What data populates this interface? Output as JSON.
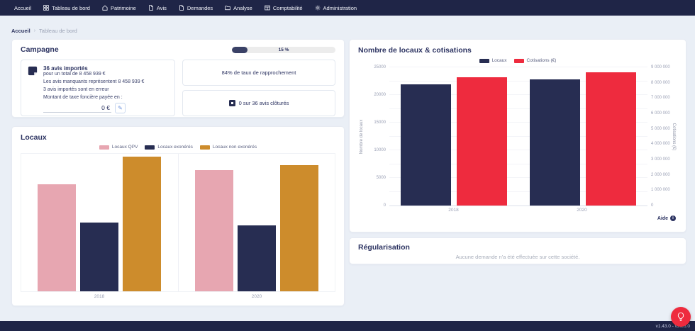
{
  "nav": {
    "items": [
      {
        "label": "Accueil",
        "icon": null
      },
      {
        "label": "Tableau de bord",
        "icon": "grid"
      },
      {
        "label": "Patrimoine",
        "icon": "home"
      },
      {
        "label": "Avis",
        "icon": "document"
      },
      {
        "label": "Demandes",
        "icon": "document"
      },
      {
        "label": "Analyse",
        "icon": "folder"
      },
      {
        "label": "Comptabilité",
        "icon": "table"
      },
      {
        "label": "Administration",
        "icon": "gear"
      }
    ]
  },
  "breadcrumb": {
    "home": "Accueil",
    "separator": "›",
    "current": "Tableau de bord"
  },
  "campagne": {
    "title": "Campagne",
    "progress": {
      "percent": 15,
      "label": "15 %"
    },
    "import_card": {
      "title": "36 avis importés",
      "subtitle": "pour un total de 8 458 939 €",
      "line_missing": "Les avis manquants représentent 8 458 939 €",
      "line_errors": "3 avis importés sont en erreur",
      "line_amount": "Montant de taxe foncière payée en :",
      "amount_value": "0 €"
    },
    "rapprochement_card": {
      "text": "84% de taux de rapprochement"
    },
    "clotures_card": {
      "text": "0 sur 36 avis clôturés"
    }
  },
  "regularisation": {
    "title": "Régularisation",
    "empty_text": "Aucune demande n'a été effectuée sur cette société."
  },
  "aide": {
    "label": "Aide",
    "info_glyph": "i"
  },
  "footer": {
    "version": "v1.43.0 - v2.26.0"
  },
  "colors": {
    "navbar": "#1f2547",
    "page_bg": "#eaeff6",
    "title_navy": "#2d3462",
    "pink": "#e7a6b1",
    "navy_bar": "#272d52",
    "gold": "#cd8c2c",
    "red": "#ee2b3e",
    "progress_fill": "#3a4166",
    "fab_red": "#ee2b3e"
  },
  "chart_data": [
    {
      "id": "locaux",
      "type": "bar",
      "title": "Locaux",
      "categories": [
        "2018",
        "2020"
      ],
      "series": [
        {
          "name": "Locaux QPV",
          "color": "#e7a6b1",
          "values": [
            78,
            88
          ]
        },
        {
          "name": "Locaux exonérés",
          "color": "#272d52",
          "values": [
            50,
            48
          ]
        },
        {
          "name": "Locaux non exonérés",
          "color": "#cd8c2c",
          "values": [
            98,
            92
          ]
        }
      ],
      "ylim": [
        0,
        100
      ],
      "grid": false,
      "legend_position": "top"
    },
    {
      "id": "locaux-cotisations",
      "type": "bar",
      "title": "Nombre de locaux & cotisations",
      "categories": [
        "2018",
        "2020"
      ],
      "series": [
        {
          "name": "Locaux",
          "axis": "left",
          "color": "#272d52",
          "values": [
            21900,
            22800
          ]
        },
        {
          "name": "Cotisations (€)",
          "axis": "right",
          "color": "#ee2b3e",
          "values": [
            8350000,
            8700000
          ]
        }
      ],
      "left_axis": {
        "label": "Nombre de locaux",
        "max": 25000,
        "ticks": [
          0,
          5000,
          10000,
          15000,
          20000,
          25000
        ],
        "minor_step": 2500
      },
      "right_axis": {
        "label": "Cotisations (€)",
        "max": 9000000,
        "ticks": [
          0,
          1000000,
          2000000,
          3000000,
          4000000,
          5000000,
          6000000,
          7000000,
          8000000,
          9000000
        ]
      },
      "grid": true,
      "legend_position": "top"
    }
  ]
}
